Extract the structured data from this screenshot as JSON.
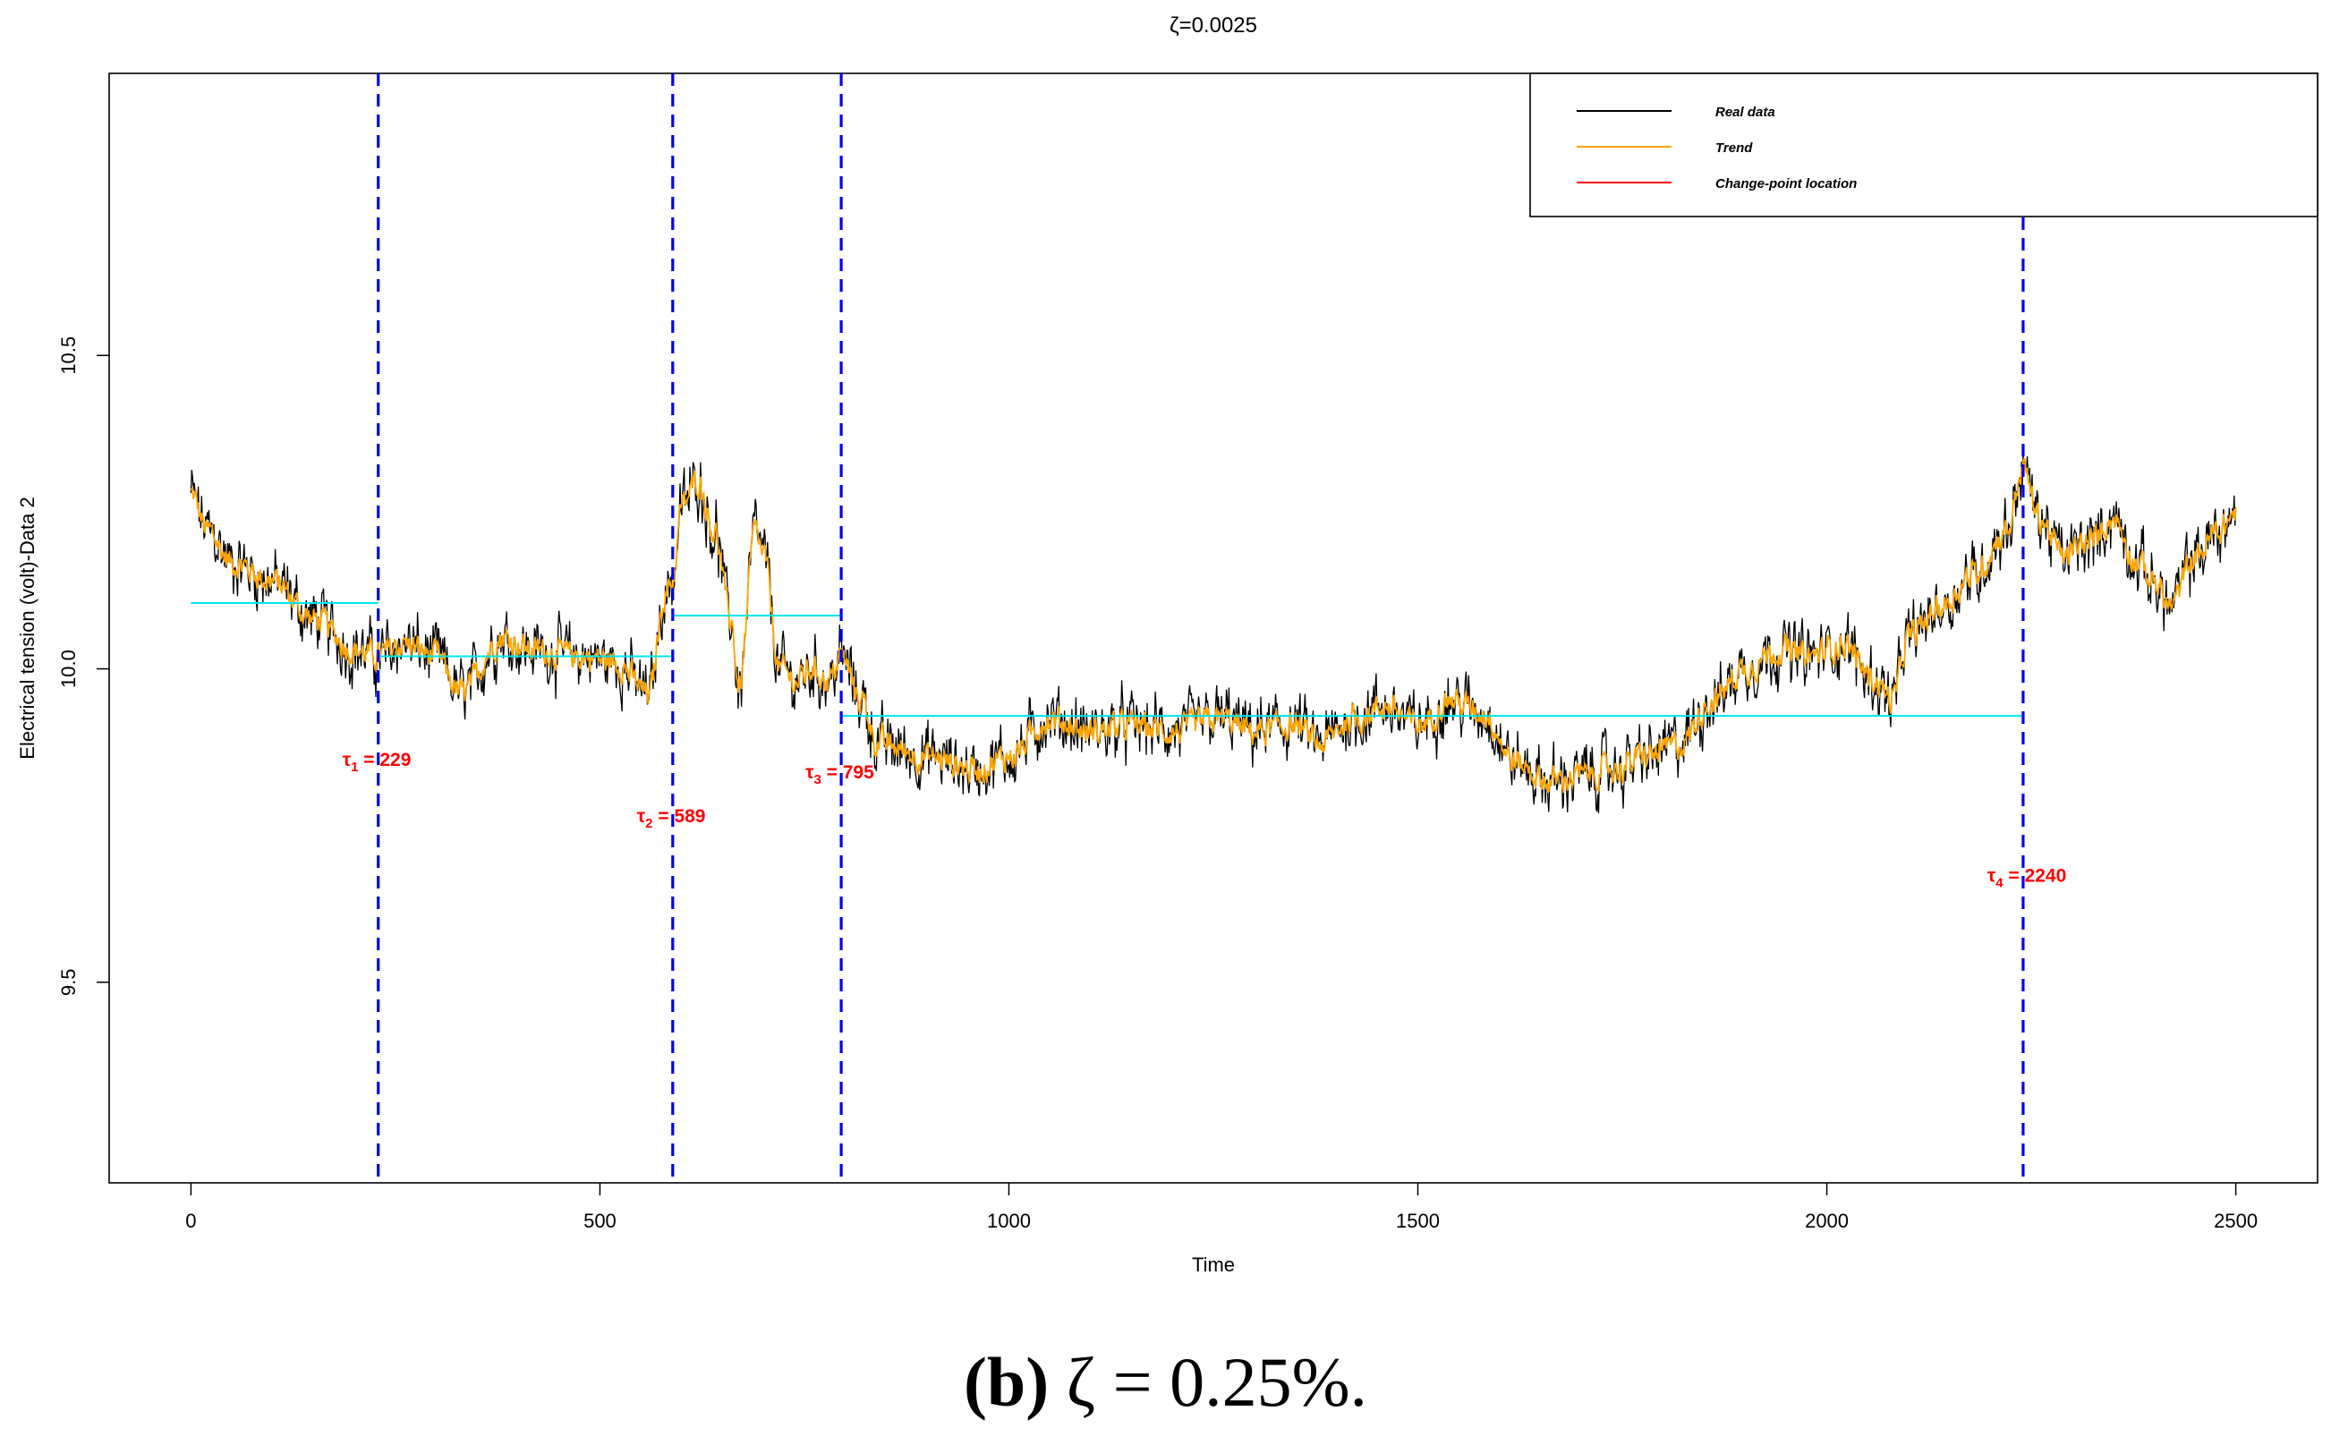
{
  "caption": {
    "label": "(b)",
    "text": "ζ = 0.25%."
  },
  "chart_data": {
    "type": "line",
    "title": "ζ=0.0025",
    "xlabel": "Time",
    "ylabel": "Electrical tension (volt)-Data 2",
    "xlim": [
      -100,
      2600
    ],
    "ylim": [
      9.18,
      10.95
    ],
    "x_ticks": [
      0,
      500,
      1000,
      1500,
      2000,
      2500
    ],
    "x_tick_labels": [
      "0",
      "500",
      "1000",
      "1500",
      "2000",
      "2500"
    ],
    "y_ticks": [
      9.5,
      10.0,
      10.5
    ],
    "y_tick_labels": [
      "9.5",
      "10.0",
      "10.5"
    ],
    "grid": false,
    "legend_position": "top-right",
    "legend": [
      {
        "label": "Real data",
        "color": "#000000"
      },
      {
        "label": "Trend",
        "color": "#ffa500"
      },
      {
        "label": "Change-point location",
        "color": "#ff0000"
      }
    ],
    "trend_knots": {
      "x": [
        0,
        20,
        50,
        100,
        150,
        200,
        229,
        260,
        300,
        330,
        380,
        420,
        480,
        520,
        560,
        580,
        589,
        600,
        620,
        640,
        660,
        670,
        690,
        700,
        720,
        740,
        760,
        780,
        795,
        820,
        840,
        900,
        960,
        1000,
        1050,
        1100,
        1150,
        1200,
        1260,
        1300,
        1350,
        1380,
        1420,
        1460,
        1500,
        1540,
        1580,
        1620,
        1660,
        1700,
        1740,
        1780,
        1820,
        1860,
        1900,
        1940,
        1980,
        2020,
        2060,
        2080,
        2100,
        2140,
        2180,
        2220,
        2240,
        2260,
        2290,
        2320,
        2350,
        2380,
        2400,
        2420,
        2450,
        2480,
        2500
      ],
      "y": [
        10.28,
        10.22,
        10.17,
        10.14,
        10.08,
        10.03,
        10.02,
        10.04,
        10.02,
        9.96,
        10.05,
        10.03,
        10.02,
        10.01,
        9.96,
        10.12,
        10.14,
        10.26,
        10.3,
        10.22,
        10.08,
        9.97,
        10.22,
        10.18,
        10.0,
        9.98,
        10.0,
        9.98,
        10.02,
        9.95,
        9.88,
        9.86,
        9.84,
        9.86,
        9.92,
        9.9,
        9.91,
        9.9,
        9.92,
        9.9,
        9.91,
        9.88,
        9.92,
        9.94,
        9.91,
        9.95,
        9.93,
        9.85,
        9.82,
        9.83,
        9.84,
        9.86,
        9.88,
        9.95,
        10.0,
        10.03,
        10.02,
        10.04,
        9.98,
        9.95,
        10.05,
        10.1,
        10.15,
        10.22,
        10.32,
        10.24,
        10.18,
        10.2,
        10.24,
        10.17,
        10.14,
        10.1,
        10.18,
        10.22,
        10.25
      ]
    },
    "segment_means": [
      {
        "x_start": 0,
        "x_end": 229,
        "y": 10.105,
        "color": "#00e5ee"
      },
      {
        "x_start": 229,
        "x_end": 589,
        "y": 10.02,
        "color": "#00e5ee"
      },
      {
        "x_start": 589,
        "x_end": 795,
        "y": 10.085,
        "color": "#00e5ee"
      },
      {
        "x_start": 795,
        "x_end": 2240,
        "y": 9.925,
        "color": "#00e5ee"
      }
    ],
    "change_points": [
      {
        "index": "1",
        "value": 229,
        "label_y": 9.845
      },
      {
        "index": "2",
        "value": 589,
        "label_y": 9.755
      },
      {
        "index": "3",
        "value": 795,
        "label_y": 9.825
      },
      {
        "index": "4",
        "value": 2240,
        "label_y": 9.66
      }
    ],
    "change_point_line_color": "#0000ee",
    "noise_amplitude": 0.04
  }
}
